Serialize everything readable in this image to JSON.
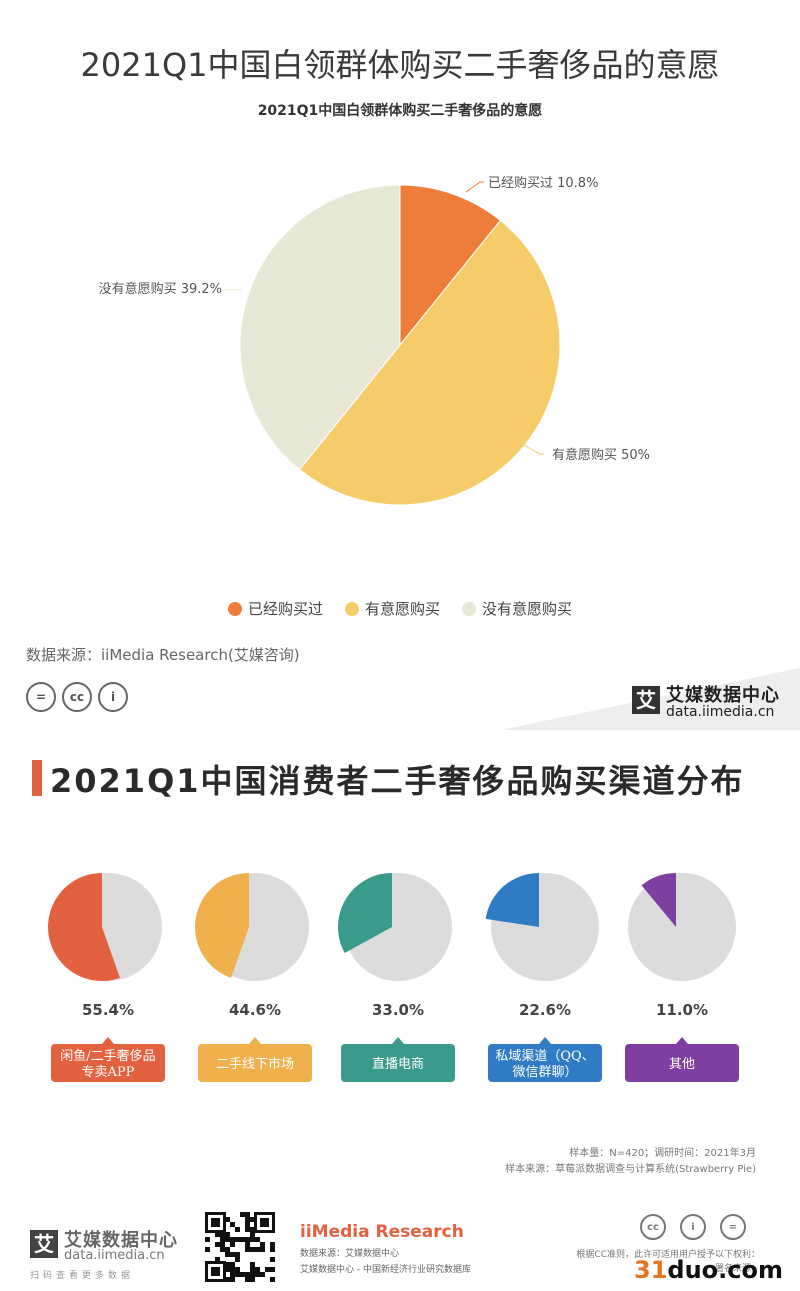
{
  "page": {
    "main_title": "2021Q1中国白领群体购买二手奢侈品的意愿",
    "source": "数据来源：iiMedia Research(艾媒咨询)",
    "brand_mark": "艾",
    "brand_cn": "艾媒数据中心",
    "brand_url": "data.iimedia.cn",
    "cc_icons": [
      "=",
      "cc",
      "i"
    ]
  },
  "chart_data": [
    {
      "type": "pie",
      "title": "2021Q1中国白领群体购买二手奢侈品的意愿",
      "slices": [
        {
          "label": "已经购买过",
          "value": 10.8,
          "display": "已经购买过 10.8%",
          "color": "#ee7d3a"
        },
        {
          "label": "有意愿购买",
          "value": 50,
          "display": "有意愿购买 50%",
          "color": "#f6cc6b"
        },
        {
          "label": "没有意愿购买",
          "value": 39.2,
          "display": "没有意愿购买 39.2%",
          "color": "#e8e8d6"
        }
      ],
      "legend_position": "bottom"
    },
    {
      "type": "pie",
      "title": "2021Q1中国消费者二手奢侈品购买渠道分布",
      "channels": [
        {
          "value": 55.4,
          "pct": "55.4%",
          "label_lines": [
            "闲鱼/二手奢侈品",
            "专卖APP"
          ],
          "color": "#e2613f"
        },
        {
          "value": 44.6,
          "pct": "44.6%",
          "label_lines": [
            "二手线下市场"
          ],
          "color": "#f0b14c"
        },
        {
          "value": 33.0,
          "pct": "33.0%",
          "label_lines": [
            "直播电商"
          ],
          "color": "#3a9a8c"
        },
        {
          "value": 22.6,
          "pct": "22.6%",
          "label_lines": [
            "私域渠道（QQ、",
            "微信群聊）"
          ],
          "color": "#2f7bc4"
        },
        {
          "value": 11.0,
          "pct": "11.0%",
          "label_lines": [
            "其他"
          ],
          "color": "#7f3fa0"
        }
      ]
    }
  ],
  "section2": {
    "title": "2021Q1中国消费者二手奢侈品购买渠道分布",
    "sample_note": "样本量：N=420；调研时间：2021年3月",
    "sample_source": "样本来源：草莓派数据调查与计算系统(Strawberry Pie)"
  },
  "footer": {
    "logo_mark": "艾",
    "brand_cn": "艾媒数据中心",
    "brand_url": "data.iimedia.cn",
    "slogan": "扫码查看更多数据",
    "iimedia": "iiMedia Research",
    "src_line1": "数据来源：艾媒数据中心",
    "src_line2": "艾媒数据中心 - 中国新经济行业研究数据库",
    "cc_icons": [
      "cc",
      "i",
      "="
    ],
    "cc_note1": "根据CC准则，此许可适用用户授予以下权利：",
    "cc_note2": "署名来源：",
    "watermark_num": "31",
    "watermark_rest": "duo.com"
  }
}
